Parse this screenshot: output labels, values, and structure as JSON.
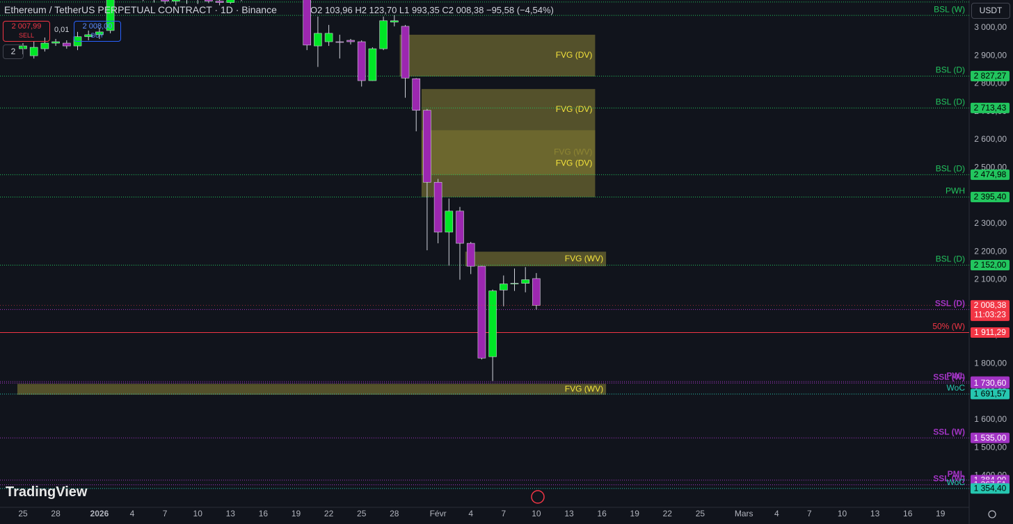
{
  "header": {
    "symbol": "Ethereum / TetherUS PERPETUAL CONTRACT · 1D · Binance",
    "ohlc": "O2 103,96 H2 123,70 L1 993,35 C2 008,38 −95,58 (−4,54%)",
    "sell_price": "2 007,99",
    "sell_label": "SELL",
    "quantity": "0,01",
    "buy_price": "2 008,00",
    "buy_label": "BUY",
    "indicator_count": "2",
    "currency": "USDT",
    "brand": "TradingView"
  },
  "chart_data": {
    "type": "candlestick",
    "categories": [
      "25",
      null,
      null,
      "28",
      null,
      null,
      null,
      "2026",
      null,
      null,
      "4",
      null,
      null,
      "7",
      null,
      null,
      "10",
      null,
      null,
      "13",
      null,
      null,
      "16",
      null,
      null,
      "19",
      null,
      null,
      "22",
      null,
      null,
      "25",
      null,
      null,
      "28",
      null,
      null,
      null,
      "Févr",
      null,
      null,
      "4",
      null,
      null,
      "7",
      null,
      null,
      "10",
      null,
      null,
      "13",
      null,
      null,
      "16",
      null,
      null,
      "19",
      null,
      null,
      "22",
      null,
      null,
      "25",
      null,
      null,
      null,
      "Mars",
      null,
      null,
      "4",
      null,
      null,
      "7",
      null,
      null,
      "10",
      null,
      null,
      "13",
      null,
      null,
      "16",
      null,
      null,
      "19"
    ],
    "open": [
      2925,
      2900,
      2925,
      2945,
      2945,
      2935,
      2968,
      2975,
      2990,
      3120,
      3140,
      3125,
      3110,
      3130,
      3095,
      3110,
      3100,
      3105,
      3095,
      3090,
      3100,
      3170,
      3210,
      3200,
      3160,
      3140,
      3130,
      2935,
      2950,
      2950,
      2955,
      2950,
      2811,
      2925,
      3020,
      3005,
      2818,
      2705,
      2448,
      2270,
      2345,
      2230,
      2148,
      1825,
      2063,
      2085,
      2087,
      2103.96,
      null,
      null,
      null,
      null,
      null,
      null,
      null,
      null,
      null,
      null,
      null,
      null,
      null,
      null,
      null,
      null,
      null,
      null,
      null,
      null,
      null,
      null,
      null,
      null,
      null,
      null,
      null,
      null,
      null,
      null,
      null,
      null,
      null,
      null,
      null,
      null,
      null
    ],
    "high": [
      2945,
      2950,
      2965,
      2960,
      2955,
      2985,
      2990,
      3000,
      3140,
      3160,
      3170,
      3150,
      3140,
      3150,
      3120,
      3125,
      3115,
      3115,
      3110,
      3110,
      3180,
      3230,
      3250,
      3220,
      3180,
      3160,
      3150,
      3040,
      3010,
      2975,
      2960,
      2955,
      2930,
      3040,
      3045,
      3010,
      2820,
      2710,
      2460,
      2390,
      2360,
      2235,
      2150,
      2065,
      2115,
      2140,
      2145,
      2123.7,
      null,
      null,
      null,
      null,
      null,
      null,
      null,
      null,
      null,
      null,
      null,
      null,
      null,
      null,
      null,
      null,
      null,
      null,
      null,
      null,
      null,
      null,
      null,
      null,
      null,
      null,
      null,
      null,
      null,
      null,
      null,
      null,
      null,
      null,
      null,
      null,
      null
    ],
    "low": [
      2905,
      2890,
      2915,
      2935,
      2925,
      2920,
      2955,
      2960,
      2980,
      3100,
      3110,
      3095,
      3090,
      3085,
      3080,
      3085,
      3085,
      3088,
      3080,
      3085,
      3095,
      3160,
      3180,
      3140,
      3120,
      3120,
      2920,
      2860,
      2935,
      2890,
      2940,
      2790,
      2810,
      2920,
      3005,
      2750,
      2630,
      2205,
      2230,
      2150,
      2100,
      2120,
      1815,
      1738,
      2005,
      2060,
      2055,
      1993.35,
      null,
      null,
      null,
      null,
      null,
      null,
      null,
      null,
      null,
      null,
      null,
      null,
      null,
      null,
      null,
      null,
      null,
      null,
      null,
      null,
      null,
      null,
      null,
      null,
      null,
      null,
      null,
      null,
      null,
      null,
      null,
      null,
      null,
      null,
      null,
      null,
      null
    ],
    "close": [
      2935,
      2930,
      2945,
      2950,
      2935,
      2968,
      2975,
      2985,
      3120,
      3140,
      3125,
      3110,
      3130,
      3095,
      3110,
      3100,
      3105,
      3095,
      3090,
      3100,
      3170,
      3210,
      3200,
      3160,
      3140,
      3130,
      2938,
      2980,
      2980,
      2948,
      2950,
      2811,
      2925,
      3025,
      3025,
      2820,
      2705,
      2448,
      2270,
      2345,
      2230,
      2148,
      1820,
      2060,
      2085,
      2087,
      2100,
      2008.38,
      null,
      null,
      null,
      null,
      null,
      null,
      null,
      null,
      null,
      null,
      null,
      null,
      null,
      null,
      null,
      null,
      null,
      null,
      null,
      null,
      null,
      null,
      null,
      null,
      null,
      null,
      null,
      null,
      null,
      null,
      null,
      null,
      null,
      null,
      null,
      null,
      null
    ],
    "up_color": "#00e626",
    "down_color": "#9c27b0",
    "ylim": [
      1287,
      3099
    ],
    "yticks": [
      {
        "value": 1400,
        "label": "1 400,00"
      },
      {
        "value": 1500,
        "label": "1 500,00"
      },
      {
        "value": 1600,
        "label": "1 600,00"
      },
      {
        "value": 1700,
        "label": "1 700,00"
      },
      {
        "value": 1800,
        "label": "1 800,00"
      },
      {
        "value": 1900,
        "label": "1 900,00"
      },
      {
        "value": 2000,
        "label": "2 000,00"
      },
      {
        "value": 2100,
        "label": "2 100,00"
      },
      {
        "value": 2200,
        "label": "2 200,00"
      },
      {
        "value": 2300,
        "label": "2 300,00"
      },
      {
        "value": 2400,
        "label": "2 400,00"
      },
      {
        "value": 2500,
        "label": "2 500,00"
      },
      {
        "value": 2600,
        "label": "2 600,00"
      },
      {
        "value": 2700,
        "label": "2 700,00"
      },
      {
        "value": 2800,
        "label": "2 800,00"
      },
      {
        "value": 2900,
        "label": "2 900,00"
      },
      {
        "value": 3000,
        "label": "3 000,00"
      }
    ],
    "grid": false,
    "zones": [
      {
        "name": "FVG (DV)",
        "top": 2975,
        "bottom": 2826,
        "start": 35,
        "end": 52,
        "color": "#6b6630"
      },
      {
        "name": "FVG (DV)",
        "top": 2781,
        "bottom": 2634,
        "start": 37,
        "end": 52,
        "color": "#6b6630"
      },
      {
        "name": "FVG (WV)",
        "top": 2634,
        "bottom": 2474,
        "start": 37,
        "end": 52,
        "color": "#8f8a30"
      },
      {
        "name": "FVG (DV)",
        "top": 2634,
        "bottom": 2395,
        "start": 37,
        "end": 52,
        "color": "#6b6630"
      },
      {
        "name": "FVG (WV)",
        "top": 2200,
        "bottom": 2148,
        "start": 41,
        "end": 53,
        "color": "#6b6630"
      },
      {
        "name": "FVG (WV)",
        "top": 1728,
        "bottom": 1689,
        "start": 0,
        "end": 53,
        "color": "#6b6630"
      }
    ],
    "levels": [
      {
        "name": "BSL (D)",
        "value": 3092,
        "color": "#22c55e"
      },
      {
        "name": "BSL (W)",
        "value": 3044,
        "color": "#22c55e"
      },
      {
        "name": "BSL (D)",
        "value": 2827.27,
        "label": "2 827,27",
        "color": "#22c55e"
      },
      {
        "name": "BSL (D)",
        "value": 2713.43,
        "label": "2 713,43",
        "color": "#22c55e"
      },
      {
        "name": "BSL (D)",
        "value": 2474.98,
        "label": "2 474,98",
        "color": "#22c55e"
      },
      {
        "name": "PWH",
        "value": 2395.4,
        "label": "2 395,40",
        "color": "#22c55e"
      },
      {
        "name": "BSL (D)",
        "value": 2152.0,
        "label": "2 152,00",
        "color": "#22c55e"
      },
      {
        "name": "SSL (D)",
        "value": 1993.34,
        "label": "1 993,34",
        "color": "#a234c4"
      },
      {
        "name": "50% (W)",
        "value": 1911.29,
        "label": "1 911,29",
        "color": "#f23645"
      },
      {
        "name": "PWL",
        "value": 1736.02,
        "label": "1 736,02",
        "color": "#a234c4"
      },
      {
        "name": "SSL (W)",
        "value": 1730.6,
        "label": "1 730,60",
        "color": "#a234c4"
      },
      {
        "name": "WoC",
        "value": 1691.57,
        "label": "1 691,57",
        "color": "#26c6b0"
      },
      {
        "name": "SSL (W)",
        "value": 1535.0,
        "label": "1 535,00",
        "color": "#a234c4"
      },
      {
        "name": "PML",
        "value": 1384.0,
        "label": "1 384,00",
        "color": "#a234c4"
      },
      {
        "name": "SSL (W)",
        "value": 1367.51,
        "label": "1 367,51",
        "color": "#a234c4"
      },
      {
        "name": "WoC",
        "value": 1354.4,
        "label": "1 354,40",
        "color": "#26c6b0"
      }
    ],
    "last_price": {
      "value": 2008.38,
      "label": "2 008,38",
      "countdown": "11:03:23",
      "color": "#f23645"
    }
  }
}
